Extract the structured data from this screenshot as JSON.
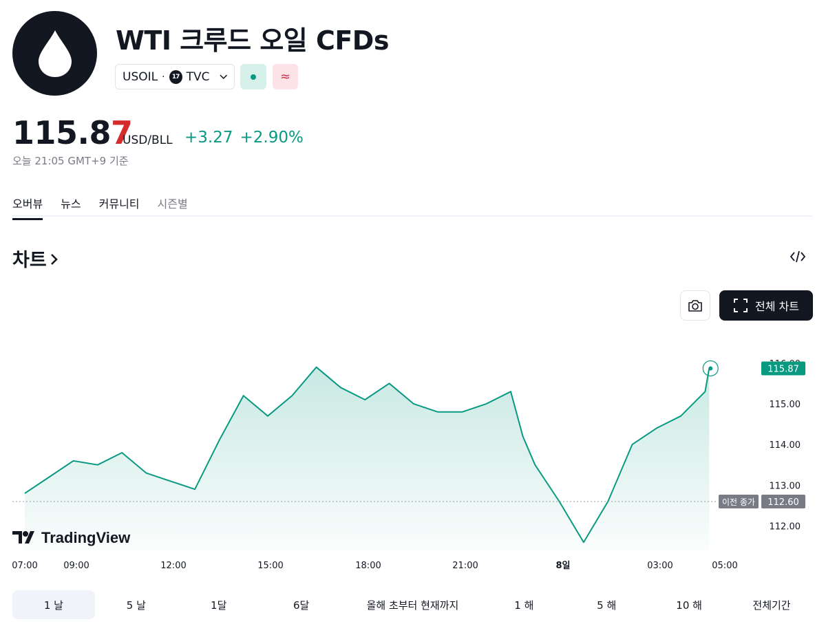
{
  "header": {
    "title": "WTI 크루드 오일 CFDs",
    "symbol": "USOIL",
    "separator": "·",
    "exchange": "TVC",
    "exchange_badge": "17",
    "delay_glyph": "≈",
    "logo_icon": "oil-drop-icon"
  },
  "quote": {
    "price_main": "115.8",
    "price_last": "7",
    "unit": "USD/BLL",
    "change": "+3.27",
    "change_pct": "+2.90%",
    "as_of": "오늘 21:05 GMT+9 기준",
    "up_color": "#089981",
    "last_digit_color": "#d42c2c"
  },
  "tabs": [
    {
      "label": "오버뷰",
      "active": true
    },
    {
      "label": "뉴스"
    },
    {
      "label": "커뮤니티"
    },
    {
      "label": "시즌별"
    }
  ],
  "section": {
    "title": "차트",
    "embed_icon": "code-embed-icon"
  },
  "chart_toolbar": {
    "camera_icon": "camera-icon",
    "fullscreen_label": "전체 차트",
    "fullscreen_icon": "fullscreen-icon"
  },
  "chart_data": {
    "type": "area",
    "brand": "TradingView",
    "x_ticks": [
      "07:00",
      "09:00",
      "12:00",
      "15:00",
      "18:00",
      "21:00",
      "8일",
      "03:00",
      "05:00"
    ],
    "y_ticks": [
      "112.00",
      "113.00",
      "114.00",
      "115.00",
      "116.00"
    ],
    "ylim": [
      111.4,
      116.3
    ],
    "last_value": 115.87,
    "last_label": "115.87",
    "prev_close": 112.6,
    "prev_close_label": "이전 종가",
    "prev_close_value_label": "112.60",
    "x": [
      "07:00",
      "07:30",
      "08:00",
      "08:30",
      "09:00",
      "09:30",
      "10:00",
      "10:30",
      "11:00",
      "11:30",
      "12:00",
      "12:30",
      "13:00",
      "13:30",
      "14:00",
      "14:30",
      "15:00",
      "15:30",
      "16:00",
      "16:30",
      "17:00",
      "17:15",
      "17:30",
      "18:00",
      "18:30",
      "19:00",
      "19:30",
      "20:00",
      "20:30",
      "21:00",
      "21:05"
    ],
    "values": [
      112.8,
      113.2,
      113.6,
      113.5,
      113.8,
      113.3,
      113.1,
      112.9,
      114.1,
      115.2,
      114.7,
      115.2,
      115.9,
      115.4,
      115.1,
      115.5,
      115.0,
      114.8,
      114.8,
      115.0,
      115.3,
      114.2,
      113.5,
      112.6,
      111.6,
      112.6,
      114.0,
      114.4,
      114.7,
      115.3,
      115.87
    ],
    "line_color": "#089981"
  },
  "ranges": [
    {
      "label": "1 날",
      "active": true
    },
    {
      "label": "5 날"
    },
    {
      "label": "1달"
    },
    {
      "label": "6달"
    },
    {
      "label": "올해 초부터 현재까지",
      "wide": true
    },
    {
      "label": "1 해"
    },
    {
      "label": "5 해"
    },
    {
      "label": "10 해"
    },
    {
      "label": "전체기간"
    }
  ]
}
